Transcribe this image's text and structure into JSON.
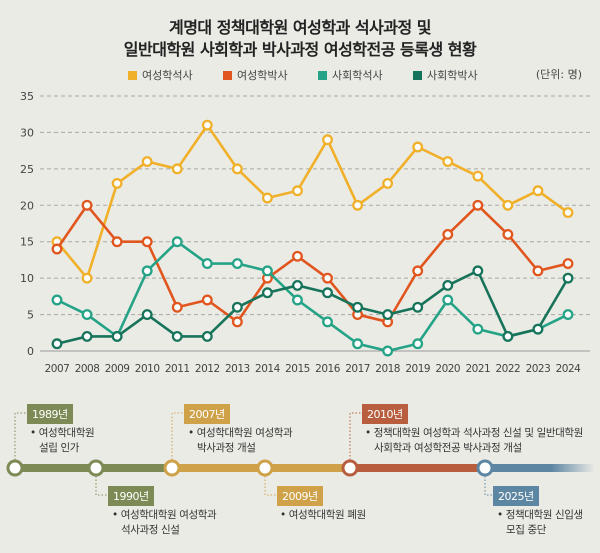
{
  "title_line1": "계명대 정책대학원 여성학과 석사과정 및",
  "title_line2": "일반대학원 사회학과 박사과정 여성학전공 등록생 현황",
  "unit": "(단위: 명)",
  "colors": {
    "background": "#ebebe6",
    "여성학석사": "#f0b02a",
    "여성학박사": "#e0561e",
    "사회학석사": "#24a386",
    "사회학박사": "#17745a"
  },
  "chart_data": {
    "type": "line",
    "x": [
      "2007",
      "2008",
      "2009",
      "2010",
      "2011",
      "2012",
      "2013",
      "2014",
      "2015",
      "2016",
      "2017",
      "2018",
      "2019",
      "2020",
      "2021",
      "2022",
      "2023",
      "2024"
    ],
    "ylim": [
      0,
      35
    ],
    "yticks": [
      "0",
      "5",
      "10",
      "15",
      "20",
      "25",
      "30",
      "35"
    ],
    "grid": "horizontal dashed",
    "legend": "top",
    "series": [
      {
        "name": "여성학석사",
        "color": "#f0b02a",
        "values": [
          15,
          10,
          23,
          26,
          25,
          31,
          25,
          21,
          22,
          29,
          20,
          23,
          28,
          26,
          24,
          20,
          22,
          19
        ]
      },
      {
        "name": "여성학박사",
        "color": "#e0561e",
        "values": [
          14,
          20,
          15,
          15,
          6,
          7,
          4,
          10,
          13,
          10,
          5,
          4,
          11,
          16,
          20,
          16,
          11,
          12
        ]
      },
      {
        "name": "사회학석사",
        "color": "#24a386",
        "values": [
          7,
          5,
          2,
          11,
          15,
          12,
          12,
          11,
          7,
          4,
          1,
          0,
          1,
          7,
          3,
          2,
          3,
          5
        ]
      },
      {
        "name": "사회학박사",
        "color": "#17745a",
        "values": [
          1,
          2,
          2,
          5,
          2,
          2,
          6,
          8,
          9,
          8,
          6,
          5,
          6,
          9,
          11,
          2,
          3,
          10
        ]
      }
    ]
  },
  "timeline": [
    {
      "year": "1989년",
      "lines": [
        "• 여성학대학원",
        "설립 인가"
      ],
      "color": "#7d8a55"
    },
    {
      "year": "1990년",
      "lines": [
        "• 여성학대학원 여성학과",
        "석사과정 신설"
      ],
      "color": "#7d8a55"
    },
    {
      "year": "2007년",
      "lines": [
        "• 여성학대학원 여성학과",
        "박사과정 개설"
      ],
      "color": "#cfa24a"
    },
    {
      "year": "2009년",
      "lines": [
        "• 여성학대학원 폐원"
      ],
      "color": "#cfa24a"
    },
    {
      "year": "2010년",
      "lines": [
        "• 정책대학원 여성학과 석사과정 신설 및 일반대학원",
        "사회학과 여성학전공 박사과정 개설"
      ],
      "color": "#b85e3e"
    },
    {
      "year": "2025년",
      "lines": [
        "• 정책대학원 신입생",
        "모집 중단"
      ],
      "color": "#5d86a3"
    }
  ]
}
